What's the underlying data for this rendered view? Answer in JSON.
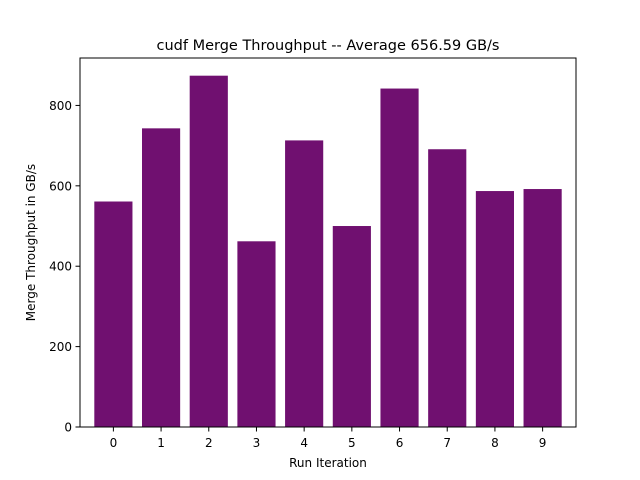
{
  "chart_data": {
    "type": "bar",
    "title": "cudf Merge Throughput -- Average 656.59 GB/s",
    "xlabel": "Run Iteration",
    "ylabel": "Merge Throughput in GB/s",
    "categories": [
      "0",
      "1",
      "2",
      "3",
      "4",
      "5",
      "6",
      "7",
      "8",
      "9"
    ],
    "values": [
      561,
      743,
      874,
      462,
      713,
      500,
      842,
      691,
      587,
      592
    ],
    "ylim": [
      0,
      918
    ],
    "yticks": [
      0,
      200,
      400,
      600,
      800
    ],
    "bar_color": "#701070",
    "grid": false,
    "legend": "none"
  }
}
